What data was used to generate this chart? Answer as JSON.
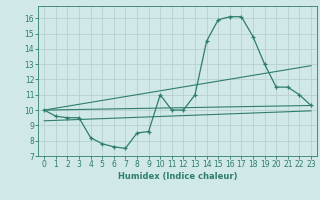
{
  "xlabel": "Humidex (Indice chaleur)",
  "bg_color": "#d0e8e8",
  "grid_color": "#b8d0d0",
  "line_color": "#2e7d6e",
  "xlim": [
    -0.5,
    23.5
  ],
  "ylim": [
    7,
    16.8
  ],
  "yticks": [
    7,
    8,
    9,
    10,
    11,
    12,
    13,
    14,
    15,
    16
  ],
  "xticks": [
    0,
    1,
    2,
    3,
    4,
    5,
    6,
    7,
    8,
    9,
    10,
    11,
    12,
    13,
    14,
    15,
    16,
    17,
    18,
    19,
    20,
    21,
    22,
    23
  ],
  "curve_x": [
    0,
    1,
    2,
    3,
    4,
    5,
    6,
    7,
    8,
    9,
    10,
    11,
    12,
    13,
    14,
    15,
    16,
    17,
    18,
    19,
    20,
    21,
    22,
    23
  ],
  "curve_y": [
    10.0,
    9.6,
    9.5,
    9.5,
    8.2,
    7.8,
    7.6,
    7.5,
    8.5,
    8.6,
    11.0,
    10.0,
    10.0,
    11.0,
    14.5,
    15.9,
    16.1,
    16.1,
    14.8,
    13.0,
    11.5,
    11.5,
    11.0,
    10.3
  ],
  "line2_x": [
    0,
    23
  ],
  "line2_y": [
    10.0,
    10.3
  ],
  "line3_x": [
    0,
    23
  ],
  "line3_y": [
    9.3,
    9.95
  ],
  "line4_x": [
    0,
    23
  ],
  "line4_y": [
    10.0,
    12.9
  ],
  "xlabel_fontsize": 6,
  "tick_fontsize": 5.5
}
